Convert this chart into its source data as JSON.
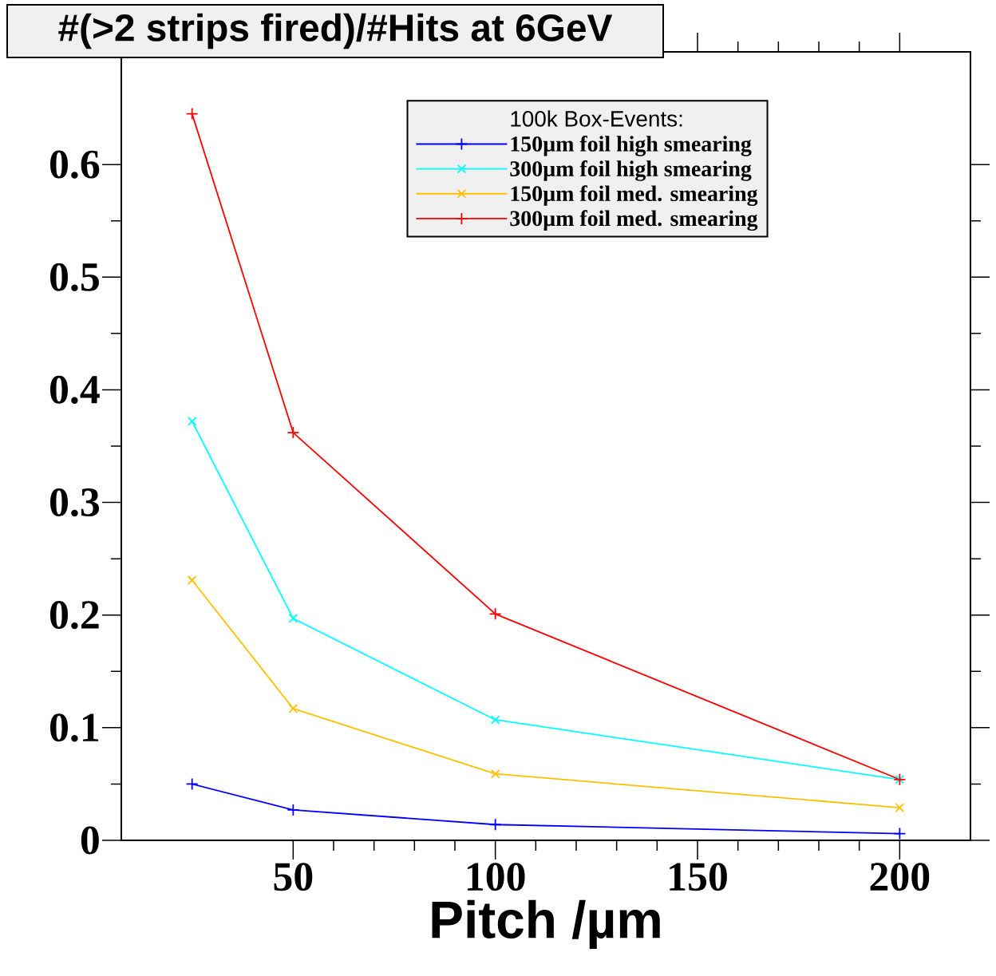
{
  "chart_data": {
    "type": "line",
    "title": "#(>2 strips fired)/#Hits at 6GeV",
    "xlabel": "Pitch /µm",
    "legend_title": "100k Box-Events:",
    "x": [
      25,
      50,
      100,
      200
    ],
    "series": [
      {
        "name": "150µm foil high smearing",
        "color": "#0000ff",
        "marker": "plus",
        "values": [
          0.05,
          0.027,
          0.014,
          0.006
        ]
      },
      {
        "name": "300µm foil high smearing",
        "color": "#00ffff",
        "marker": "cross",
        "values": [
          0.372,
          0.197,
          0.107,
          0.054
        ]
      },
      {
        "name": "150µm foil med. smearing",
        "color": "#ffc000",
        "marker": "cross",
        "values": [
          0.231,
          0.117,
          0.059,
          0.029
        ]
      },
      {
        "name": "300µm foil med. smearing",
        "color": "#ff0000",
        "marker": "plus",
        "values": [
          0.645,
          0.362,
          0.201,
          0.054
        ]
      }
    ],
    "xlim": [
      7.5,
      217.5
    ],
    "ylim": [
      0,
      0.7
    ],
    "xticks": [
      50,
      100,
      150,
      200
    ],
    "yticks": [
      0,
      0.1,
      0.2,
      0.3,
      0.4,
      0.5,
      0.6
    ],
    "grid": false,
    "legend": "top right",
    "line_style": "solid"
  }
}
